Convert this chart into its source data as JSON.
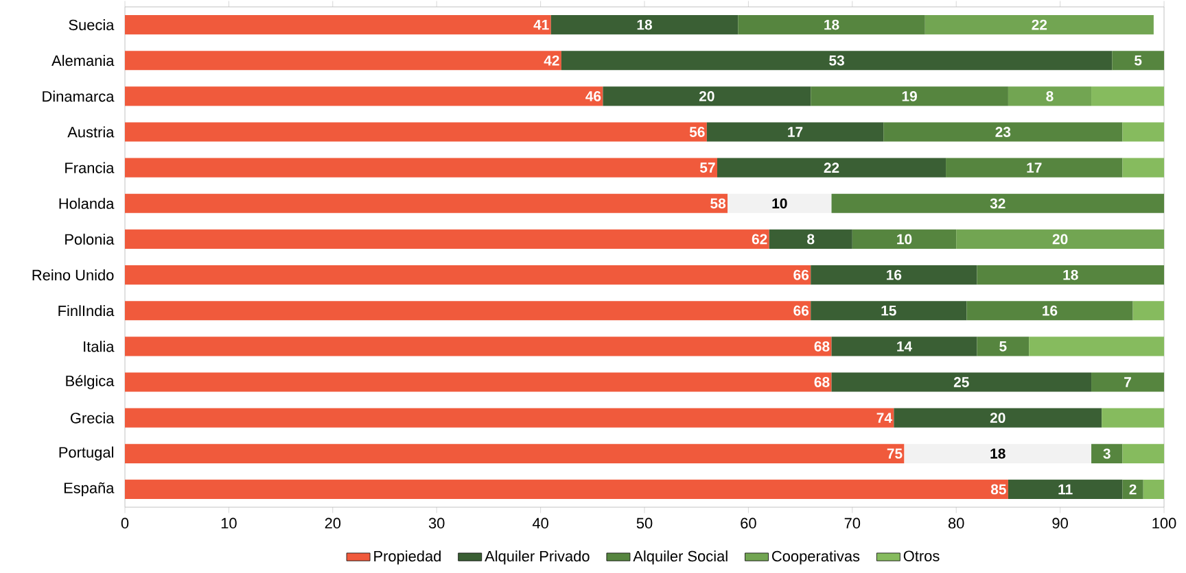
{
  "chart_data": {
    "type": "bar",
    "orientation": "horizontal",
    "stacked": true,
    "categories": [
      "Suecia",
      "Alemania",
      "Dinamarca",
      "Austria",
      "Francia",
      "Holanda",
      "Polonia",
      "Reino Unido",
      "FinlIndia",
      "Italia",
      "Bélgica",
      "Grecia",
      "Portugal",
      "España"
    ],
    "series": [
      {
        "name": "Propiedad",
        "color": "#f05a3c",
        "values": [
          41,
          42,
          46,
          56,
          57,
          58,
          62,
          66,
          66,
          68,
          68,
          74,
          75,
          85
        ],
        "value_labels": [
          "41",
          "42",
          "46",
          "56",
          "57",
          "58",
          "62",
          "66",
          "66",
          "68",
          "68",
          "74",
          "75",
          "85"
        ]
      },
      {
        "name": "Alquiler Privado",
        "color": "#3a5f34",
        "colors": [
          "#3a5f34",
          "#3a5f34",
          "#3a5f34",
          "#3a5f34",
          "#3a5f34",
          "#f2f2f2",
          "#3a5f34",
          "#3a5f34",
          "#3a5f34",
          "#3a5f34",
          "#3a5f34",
          "#3a5f34",
          "#f2f2f2",
          "#3a5f34"
        ],
        "values": [
          18,
          53,
          20,
          17,
          22,
          10,
          8,
          16,
          15,
          14,
          25,
          20,
          18,
          11
        ],
        "value_labels": [
          "18",
          "53",
          "20",
          "17",
          "22",
          "10",
          "8",
          "16",
          "15",
          "14",
          "25",
          "20",
          "18",
          "11"
        ]
      },
      {
        "name": "Alquiler Social",
        "color": "#56853f",
        "values": [
          18,
          5,
          19,
          23,
          17,
          32,
          10,
          18,
          16,
          5,
          7,
          null,
          3,
          2
        ],
        "value_labels": [
          "18",
          "5",
          "19",
          "23",
          "17",
          "32",
          "10",
          "18",
          "16",
          "5",
          "7",
          null,
          "3",
          "2"
        ]
      },
      {
        "name": "Cooperativas",
        "color": "#72a552",
        "values": [
          22,
          null,
          8,
          null,
          null,
          null,
          20,
          null,
          null,
          null,
          null,
          null,
          null,
          null
        ],
        "value_labels": [
          "22",
          null,
          "8",
          null,
          null,
          null,
          "20",
          null,
          null,
          null,
          null,
          null,
          null,
          null
        ]
      },
      {
        "name": "Otros",
        "color": "#86bb5e",
        "values": [
          null,
          null,
          7,
          4,
          4,
          null,
          null,
          null,
          3,
          13,
          null,
          6,
          4,
          2
        ],
        "value_labels": [
          null,
          null,
          null,
          null,
          null,
          null,
          null,
          null,
          null,
          null,
          null,
          null,
          null,
          null
        ]
      }
    ],
    "xlim": [
      0,
      100
    ],
    "xticks": [
      0,
      10,
      20,
      30,
      40,
      50,
      60,
      70,
      80,
      90,
      100
    ],
    "legend": "bottom",
    "grid": false
  }
}
